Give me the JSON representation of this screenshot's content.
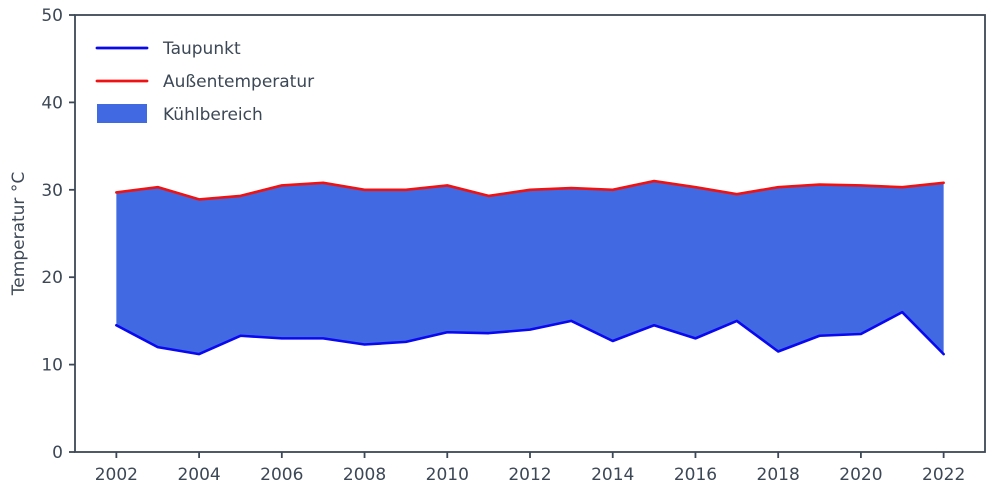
{
  "chart_data": {
    "type": "area",
    "title": "",
    "xlabel": "",
    "ylabel": "Temperatur °C",
    "xlim": [
      2001,
      2023
    ],
    "ylim": [
      0,
      50
    ],
    "x_ticks": [
      2002,
      2004,
      2006,
      2008,
      2010,
      2012,
      2014,
      2016,
      2018,
      2020,
      2022
    ],
    "y_ticks": [
      0,
      10,
      20,
      30,
      40,
      50
    ],
    "grid": false,
    "legend_position": "upper left",
    "x": [
      2002,
      2003,
      2004,
      2005,
      2006,
      2007,
      2008,
      2009,
      2010,
      2011,
      2012,
      2013,
      2014,
      2015,
      2016,
      2017,
      2018,
      2019,
      2020,
      2021,
      2022
    ],
    "series": [
      {
        "name": "Taupunkt",
        "color": "#0908f0",
        "values": [
          14.5,
          12.0,
          11.2,
          13.3,
          13.0,
          13.0,
          12.3,
          12.6,
          13.7,
          13.6,
          14.0,
          15.0,
          12.7,
          14.5,
          13.0,
          15.0,
          11.5,
          13.3,
          13.5,
          16.0,
          11.2
        ]
      },
      {
        "name": "Außentemperatur",
        "color": "#ee1212",
        "values": [
          29.7,
          30.3,
          28.9,
          29.3,
          30.5,
          30.8,
          30.0,
          30.0,
          30.5,
          29.3,
          30.0,
          30.2,
          30.0,
          31.0,
          30.3,
          29.5,
          30.3,
          30.6,
          30.5,
          30.3,
          30.8
        ]
      }
    ],
    "fill_between": {
      "name": "Kühlbereich",
      "color": "#4169e1"
    },
    "legend": [
      {
        "label": "Taupunkt",
        "type": "line",
        "color": "#0908f0"
      },
      {
        "label": "Außentemperatur",
        "type": "line",
        "color": "#ee1212"
      },
      {
        "label": "Kühlbereich",
        "type": "patch",
        "color": "#4169e1"
      }
    ]
  },
  "style": {
    "text_color": "#3d4856",
    "spine_color": "#3d4856",
    "background": "#ffffff"
  }
}
